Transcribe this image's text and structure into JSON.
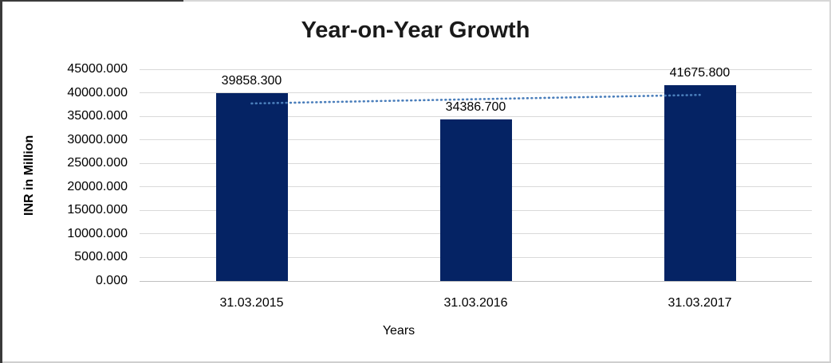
{
  "chart_data": {
    "type": "bar",
    "title": "Year-on-Year Growth",
    "xlabel": "Years",
    "ylabel": "INR in Million",
    "categories": [
      "31.03.2015",
      "31.03.2016",
      "31.03.2017"
    ],
    "values": [
      39858.3,
      34386.7,
      41675.8
    ],
    "value_labels": [
      "39858.300",
      "34386.700",
      "41675.800"
    ],
    "y_ticks": [
      "45000.000",
      "40000.000",
      "35000.000",
      "30000.000",
      "25000.000",
      "20000.000",
      "15000.000",
      "10000.000",
      "5000.000",
      "0.000"
    ],
    "ylim": [
      0,
      45000
    ],
    "grid": "horizontal",
    "legend": "none",
    "bar_color": "#052364",
    "trendline": {
      "type": "linear",
      "style": "dotted",
      "color": "#4A7EBB"
    }
  }
}
